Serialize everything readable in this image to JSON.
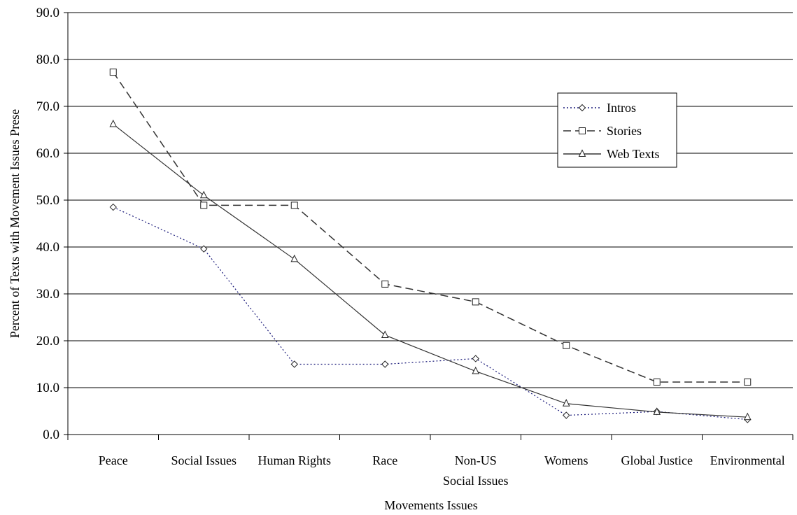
{
  "chart_data": {
    "type": "line",
    "title": "",
    "xlabel": "Movements Issues",
    "ylabel": "Percent of Texts with Movement Issues Prese",
    "ylim": [
      0,
      90
    ],
    "ytick_step": 10,
    "ytick_labels": [
      "0.0",
      "10.0",
      "20.0",
      "30.0",
      "40.0",
      "50.0",
      "60.0",
      "70.0",
      "80.0",
      "90.0"
    ],
    "grid": true,
    "legend_position": "right",
    "categories": [
      [
        "Peace"
      ],
      [
        "Social Issues"
      ],
      [
        "Human Rights"
      ],
      [
        "Race"
      ],
      [
        "Non-US",
        "Social Issues"
      ],
      [
        "Womens"
      ],
      [
        "Global Justice"
      ],
      [
        "Environmental"
      ]
    ],
    "series": [
      {
        "name": "Intros",
        "marker": "diamond",
        "style": "dotted",
        "color": "#1a1a7a",
        "values": [
          48.5,
          39.6,
          15.0,
          15.0,
          16.2,
          4.1,
          4.9,
          3.2
        ]
      },
      {
        "name": "Stories",
        "marker": "square",
        "style": "dashed",
        "color": "#333333",
        "values": [
          77.3,
          48.9,
          48.9,
          32.1,
          28.3,
          19.0,
          11.2,
          11.2
        ]
      },
      {
        "name": "Web Texts",
        "marker": "triangle",
        "style": "solid",
        "color": "#333333",
        "values": [
          66.2,
          51.0,
          37.4,
          21.2,
          13.5,
          6.6,
          4.8,
          3.7
        ]
      }
    ]
  }
}
